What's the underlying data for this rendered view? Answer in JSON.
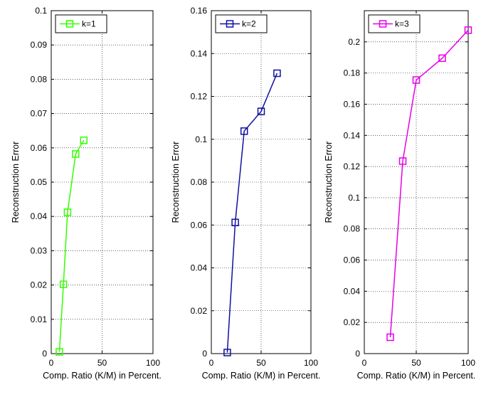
{
  "chart_data": [
    {
      "type": "line",
      "xlabel": "Comp. Ratio (K/M) in Percent.",
      "ylabel": "Reconstruction Error",
      "xlim": [
        0,
        100
      ],
      "ylim": [
        0,
        0.1
      ],
      "xticks": [
        0,
        50,
        100
      ],
      "xtick_labels": [
        "0",
        "50",
        "100"
      ],
      "yticks": [
        0,
        0.01,
        0.02,
        0.03,
        0.04,
        0.05,
        0.06,
        0.07,
        0.08,
        0.09,
        0.1
      ],
      "ytick_labels": [
        "0",
        "0.01",
        "0.02",
        "0.03",
        "0.04",
        "0.05",
        "0.06",
        "0.07",
        "0.08",
        "0.09",
        "0.1"
      ],
      "grid": true,
      "legend_position": "top-left",
      "series": [
        {
          "name": "k=1",
          "color": "#33ff00",
          "marker": "square",
          "x": [
            8,
            12,
            16,
            24,
            32
          ],
          "y": [
            0.0005,
            0.0202,
            0.0412,
            0.0582,
            0.0622
          ]
        }
      ]
    },
    {
      "type": "line",
      "xlabel": "Comp. Ratio (K/M) in Percent.",
      "ylabel": "Reconstruction Error",
      "xlim": [
        0,
        100
      ],
      "ylim": [
        0,
        0.16
      ],
      "xticks": [
        0,
        50,
        100
      ],
      "xtick_labels": [
        "0",
        "50",
        "100"
      ],
      "yticks": [
        0,
        0.02,
        0.04,
        0.06,
        0.08,
        0.1,
        0.12,
        0.14,
        0.16
      ],
      "ytick_labels": [
        "0",
        "0.02",
        "0.04",
        "0.06",
        "0.08",
        "0.1",
        "0.12",
        "0.14",
        "0.16"
      ],
      "grid": true,
      "legend_position": "top-left",
      "series": [
        {
          "name": "k=2",
          "color": "#1010a0",
          "marker": "square",
          "x": [
            16,
            24,
            33,
            50,
            66
          ],
          "y": [
            0.0005,
            0.0612,
            0.1038,
            0.113,
            0.1308
          ]
        }
      ]
    },
    {
      "type": "line",
      "xlabel": "Comp. Ratio (K/M) in Percent.",
      "ylabel": "Reconstruction Error",
      "xlim": [
        0,
        100
      ],
      "ylim": [
        0,
        0.22
      ],
      "xticks": [
        0,
        50,
        100
      ],
      "xtick_labels": [
        "0",
        "50",
        "100"
      ],
      "yticks": [
        0,
        0.02,
        0.04,
        0.06,
        0.08,
        0.1,
        0.12,
        0.14,
        0.16,
        0.18,
        0.2
      ],
      "ytick_labels": [
        "0",
        "0.02",
        "0.04",
        "0.06",
        "0.08",
        "0.1",
        "0.12",
        "0.14",
        "0.16",
        "0.18",
        "0.2"
      ],
      "grid": true,
      "legend_position": "top-left",
      "series": [
        {
          "name": "k=3",
          "color": "#e600e6",
          "marker": "square",
          "x": [
            25,
            37,
            50,
            75,
            100
          ],
          "y": [
            0.0105,
            0.1235,
            0.1755,
            0.1895,
            0.2075
          ]
        }
      ]
    }
  ]
}
